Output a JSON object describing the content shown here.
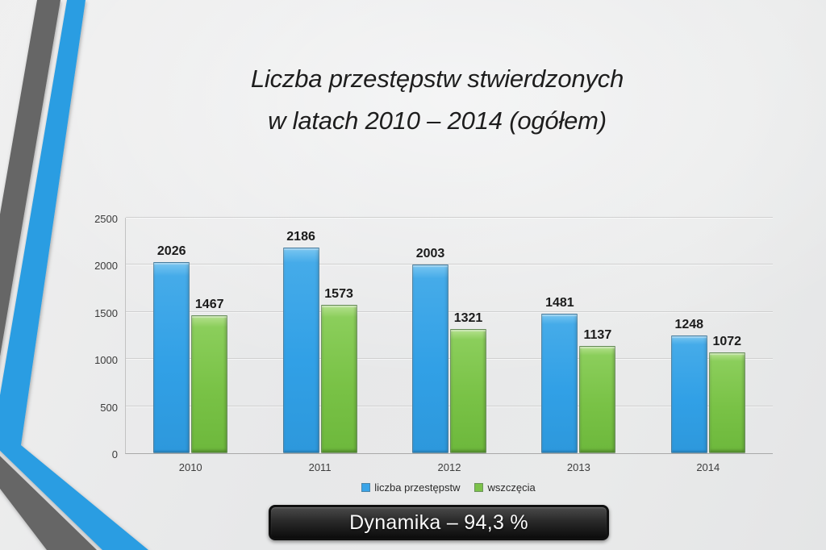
{
  "slide": {
    "title_line1": "Liczba przestępstw stwierdzonych",
    "title_line2": "w latach 2010 – 2014 (ogółem)",
    "banner_text": "Dynamika – 94,3 %"
  },
  "chart_data": {
    "type": "bar",
    "title": "Liczba przestępstw stwierdzonych w latach 2010 – 2014 (ogółem)",
    "categories": [
      "2010",
      "2011",
      "2012",
      "2013",
      "2014"
    ],
    "series": [
      {
        "name": "liczba przestępstw",
        "color": "#3aa4e8",
        "values": [
          2026,
          2186,
          2003,
          1481,
          1248
        ]
      },
      {
        "name": "wszczęcia",
        "color": "#7cc24a",
        "values": [
          1467,
          1573,
          1321,
          1137,
          1072
        ]
      }
    ],
    "ylim": [
      0,
      2500
    ],
    "yticks": [
      0,
      500,
      1000,
      1500,
      2000,
      2500
    ],
    "grid": true,
    "legend_position": "bottom",
    "data_labels": true,
    "xlabel": "",
    "ylabel": ""
  },
  "decoration": {
    "stripe_blue": "#2c9de2",
    "stripe_gray": "#666666",
    "background": "#e9eaea",
    "banner_background": "#1a1a1a"
  }
}
